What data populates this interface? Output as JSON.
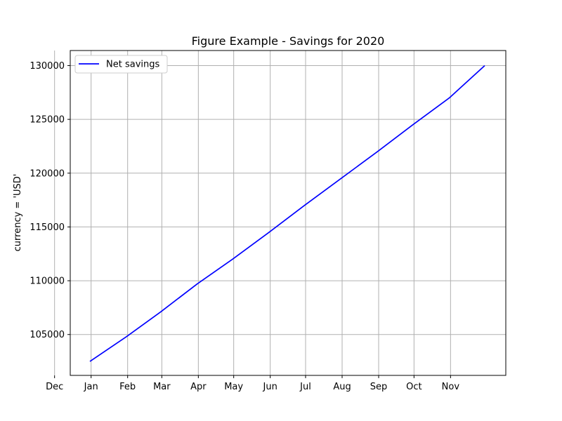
{
  "chart_data": {
    "type": "line",
    "title": "Figure Example - Savings for 2020",
    "xlabel": "",
    "ylabel": "currency = 'USD'",
    "x_tick_labels": [
      "Dec",
      "Jan",
      "Feb",
      "Mar",
      "Apr",
      "May",
      "Jun",
      "Jul",
      "Aug",
      "Sep",
      "Oct",
      "Nov"
    ],
    "y_ticks": [
      105000,
      110000,
      115000,
      120000,
      125000,
      130000
    ],
    "y_tick_labels": [
      "105000",
      "110000",
      "115000",
      "120000",
      "125000",
      "130000"
    ],
    "ylim": [
      101200,
      131400
    ],
    "grid": true,
    "legend_position": "upper-left",
    "series": [
      {
        "name": "Net savings",
        "color": "#0000ff",
        "x": [
          "2019-12-31",
          "2020-01-31",
          "2020-02-29",
          "2020-03-31",
          "2020-04-30",
          "2020-05-31",
          "2020-06-30",
          "2020-07-31",
          "2020-08-31",
          "2020-09-30",
          "2020-10-31",
          "2020-11-30"
        ],
        "values": [
          102500,
          104800,
          107100,
          109700,
          112000,
          114500,
          117000,
          119500,
          122000,
          124500,
          127000,
          130000
        ]
      }
    ]
  }
}
